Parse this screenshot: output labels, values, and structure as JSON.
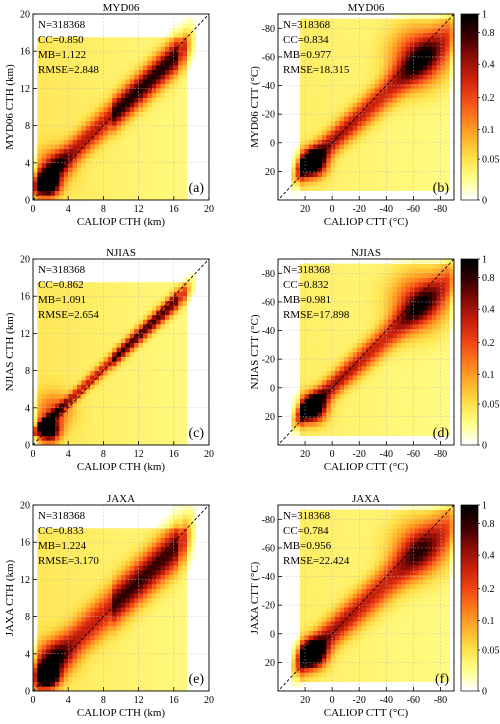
{
  "colorbar": {
    "ticks": [
      {
        "value": 1,
        "label": "1"
      },
      {
        "value": 0.8,
        "label": "0.8"
      },
      {
        "value": 0.4,
        "label": "0.4"
      },
      {
        "value": 0.2,
        "label": "0.2"
      },
      {
        "value": 0.1,
        "label": "0.1"
      },
      {
        "value": 0.05,
        "label": "0.05"
      },
      {
        "value": 0,
        "label": "0"
      }
    ],
    "colors": [
      "#ffffff",
      "#ffff88",
      "#ffe04a",
      "#ffb02a",
      "#ff7a1e",
      "#f04515",
      "#c81e0c",
      "#8a0c06",
      "#3a0000",
      "#000000"
    ]
  },
  "chart_data": [
    {
      "type": "heatmap",
      "panel": "(a)",
      "title": "MYD06",
      "variable": "CTH",
      "xlabel": "CALIOP CTH (km)",
      "ylabel": "MYD06 CTH (km)",
      "xlim": [
        0,
        20
      ],
      "ylim": [
        0,
        20
      ],
      "xticks": [
        "0",
        "4",
        "8",
        "12",
        "16",
        "20"
      ],
      "yticks": [
        "0",
        "4",
        "8",
        "12",
        "16",
        "20"
      ],
      "stats": [
        "N=318368",
        "CC=0.850",
        "MB=1.122",
        "RMSE=2.848"
      ]
    },
    {
      "type": "heatmap",
      "panel": "(b)",
      "title": "MYD06",
      "variable": "CTT",
      "xlabel": "CALIOP CTT (°C)",
      "ylabel": "MYD06 CTT (°C)",
      "xlim": [
        40,
        -90
      ],
      "ylim": [
        40,
        -90
      ],
      "xticks": [
        "20",
        "0",
        "-20",
        "-40",
        "-60",
        "-80"
      ],
      "yticks": [
        "20",
        "0",
        "-20",
        "-40",
        "-60",
        "-80"
      ],
      "stats": [
        "N=318368",
        "CC=0.834",
        "MB=0.977",
        "RMSE=18.315"
      ]
    },
    {
      "type": "heatmap",
      "panel": "(c)",
      "title": "NJIAS",
      "variable": "CTH",
      "xlabel": "CALIOP CTH (km)",
      "ylabel": "NJIAS CTH (km)",
      "xlim": [
        0,
        20
      ],
      "ylim": [
        0,
        20
      ],
      "xticks": [
        "0",
        "4",
        "8",
        "12",
        "16",
        "20"
      ],
      "yticks": [
        "0",
        "4",
        "8",
        "12",
        "16",
        "20"
      ],
      "stats": [
        "N=318368",
        "CC=0.862",
        "MB=1.091",
        "RMSE=2.654"
      ]
    },
    {
      "type": "heatmap",
      "panel": "(d)",
      "title": "NJIAS",
      "variable": "CTT",
      "xlabel": "CALIOP CTT (°C)",
      "ylabel": "NJIAS CTT (°C)",
      "xlim": [
        40,
        -90
      ],
      "ylim": [
        40,
        -90
      ],
      "xticks": [
        "20",
        "0",
        "-20",
        "-40",
        "-60",
        "-80"
      ],
      "yticks": [
        "20",
        "0",
        "-20",
        "-40",
        "-60",
        "-80"
      ],
      "stats": [
        "N=318368",
        "CC=0.832",
        "MB=0.981",
        "RMSE=17.898"
      ]
    },
    {
      "type": "heatmap",
      "panel": "(e)",
      "title": "JAXA",
      "variable": "CTH",
      "xlabel": "CALIOP CTH (km)",
      "ylabel": "JAXA CTH (km)",
      "xlim": [
        0,
        20
      ],
      "ylim": [
        0,
        20
      ],
      "xticks": [
        "0",
        "4",
        "8",
        "12",
        "16",
        "20"
      ],
      "yticks": [
        "0",
        "4",
        "8",
        "12",
        "16",
        "20"
      ],
      "stats": [
        "N=318368",
        "CC=0.833",
        "MB=1.224",
        "RMSE=3.170"
      ]
    },
    {
      "type": "heatmap",
      "panel": "(f)",
      "title": "JAXA",
      "variable": "CTT",
      "xlabel": "CALIOP CTT (°C)",
      "ylabel": "JAXA CTT (°C)",
      "xlim": [
        40,
        -90
      ],
      "ylim": [
        40,
        -90
      ],
      "xticks": [
        "20",
        "0",
        "-20",
        "-40",
        "-60",
        "-80"
      ],
      "yticks": [
        "20",
        "0",
        "-20",
        "-40",
        "-60",
        "-80"
      ],
      "stats": [
        "N=318368",
        "CC=0.784",
        "MB=0.956",
        "RMSE=22.424"
      ]
    }
  ]
}
